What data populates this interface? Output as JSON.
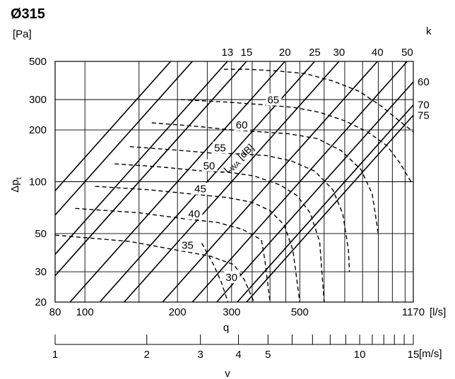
{
  "chart_data": {
    "type": "line",
    "title": "Ø315",
    "x_axis": {
      "label": "q",
      "unit": "[l/s]",
      "scale": "log",
      "range": [
        80,
        1170
      ],
      "tick_labels": [
        {
          "value": 80,
          "text": "80"
        },
        {
          "value": 100,
          "text": "100"
        },
        {
          "value": 200,
          "text": "200"
        },
        {
          "value": 300,
          "text": "300"
        },
        {
          "value": 500,
          "text": "500"
        },
        {
          "value": 1170,
          "text": "1170"
        }
      ],
      "minor_gridlines": [
        150,
        250,
        350,
        400,
        450,
        600,
        700,
        800,
        900,
        1000,
        1100
      ]
    },
    "y_axis": {
      "label": "Δpt",
      "label_main": "Δp",
      "label_sub": "t",
      "unit": "[Pa]",
      "scale": "log",
      "range": [
        20,
        500
      ],
      "tick_labels": [
        {
          "value": 20,
          "text": "20"
        },
        {
          "value": 30,
          "text": "30"
        },
        {
          "value": 50,
          "text": "50"
        },
        {
          "value": 100,
          "text": "100"
        },
        {
          "value": 200,
          "text": "200"
        },
        {
          "value": 300,
          "text": "300"
        },
        {
          "value": 500,
          "text": "500"
        }
      ]
    },
    "v_axis": {
      "label": "v",
      "unit": "[m/s]",
      "range": [
        1,
        15
      ],
      "tick_values": [
        1,
        2,
        3,
        4,
        5,
        6,
        7,
        8,
        9,
        10,
        11,
        12,
        13,
        14,
        15
      ],
      "tick_labels": [
        {
          "value": 1,
          "text": "1"
        },
        {
          "value": 2,
          "text": "2"
        },
        {
          "value": 3,
          "text": "3"
        },
        {
          "value": 4,
          "text": "4"
        },
        {
          "value": 5,
          "text": "5"
        },
        {
          "value": 10,
          "text": "10"
        },
        {
          "value": 15,
          "text": "15"
        }
      ]
    },
    "k_axis": {
      "label": "k",
      "series": [
        {
          "k": 13,
          "text": "13"
        },
        {
          "k": 15,
          "text": "15"
        },
        {
          "k": 20,
          "text": "20"
        },
        {
          "k": 25,
          "text": "25"
        },
        {
          "k": 30,
          "text": "30"
        },
        {
          "k": 40,
          "text": "40"
        },
        {
          "k": 50,
          "text": "50"
        },
        {
          "k": 60,
          "text": "60"
        },
        {
          "k": 70,
          "text": "70"
        },
        {
          "k": 75,
          "text": "75"
        }
      ],
      "extra_lines_k": [
        8.5,
        10
      ]
    },
    "sound_level": {
      "label_main": "L",
      "label_sub": "WA",
      "label_unit": " [dB]",
      "curves": [
        {
          "level": "30",
          "points": [
            [
              240,
              44
            ],
            [
              262,
              33
            ],
            [
              278,
              26
            ],
            [
              292,
              20
            ]
          ]
        },
        {
          "level": "35",
          "points": [
            [
              80,
              49
            ],
            [
              140,
              45
            ],
            [
              200,
              40
            ],
            [
              255,
              37
            ],
            [
              305,
              33
            ],
            [
              330,
              27
            ],
            [
              355,
              20
            ]
          ]
        },
        {
          "level": "40",
          "points": [
            [
              93,
              70
            ],
            [
              150,
              66
            ],
            [
              210,
              61
            ],
            [
              270,
              58
            ],
            [
              325,
              53
            ],
            [
              375,
              46
            ],
            [
              385,
              35
            ],
            [
              400,
              20
            ]
          ]
        },
        {
          "level": "45",
          "points": [
            [
              108,
              94
            ],
            [
              160,
              90
            ],
            [
              220,
              85
            ],
            [
              290,
              81
            ],
            [
              350,
              76
            ],
            [
              400,
              68
            ],
            [
              445,
              56
            ],
            [
              475,
              40
            ],
            [
              500,
              20
            ]
          ]
        },
        {
          "level": "50",
          "points": [
            [
              125,
              127
            ],
            [
              175,
              122
            ],
            [
              235,
              116
            ],
            [
              300,
              113
            ],
            [
              355,
              108
            ],
            [
              430,
              96
            ],
            [
              490,
              83
            ],
            [
              540,
              66
            ],
            [
              580,
              45
            ],
            [
              600,
              20
            ]
          ]
        },
        {
          "level": "55",
          "points": [
            [
              140,
              160
            ],
            [
              195,
              153
            ],
            [
              255,
              147
            ],
            [
              320,
              145
            ],
            [
              390,
              142
            ],
            [
              470,
              132
            ],
            [
              560,
              115
            ],
            [
              640,
              90
            ],
            [
              690,
              65
            ],
            [
              720,
              40
            ],
            [
              725,
              30
            ]
          ]
        },
        {
          "level": "60",
          "points": [
            [
              165,
              220
            ],
            [
              230,
              210
            ],
            [
              300,
              200
            ],
            [
              375,
              195
            ],
            [
              460,
              190
            ],
            [
              570,
              178
            ],
            [
              680,
              152
            ],
            [
              790,
              118
            ],
            [
              860,
              85
            ],
            [
              900,
              50
            ]
          ]
        },
        {
          "level": "65",
          "points": [
            [
              205,
              300
            ],
            [
              290,
              290
            ],
            [
              380,
              280
            ],
            [
              480,
              270
            ],
            [
              580,
              253
            ],
            [
              700,
              226
            ],
            [
              830,
              195
            ],
            [
              960,
              162
            ],
            [
              1060,
              128
            ],
            [
              1150,
              100
            ]
          ]
        },
        {
          "level": "",
          "points": [
            [
              283,
              450
            ],
            [
              340,
              450
            ],
            [
              420,
              440
            ],
            [
              520,
              425
            ],
            [
              640,
              385
            ],
            [
              780,
              335
            ],
            [
              920,
              275
            ],
            [
              1040,
              230
            ],
            [
              1170,
              195
            ]
          ]
        }
      ]
    },
    "grid": true
  }
}
